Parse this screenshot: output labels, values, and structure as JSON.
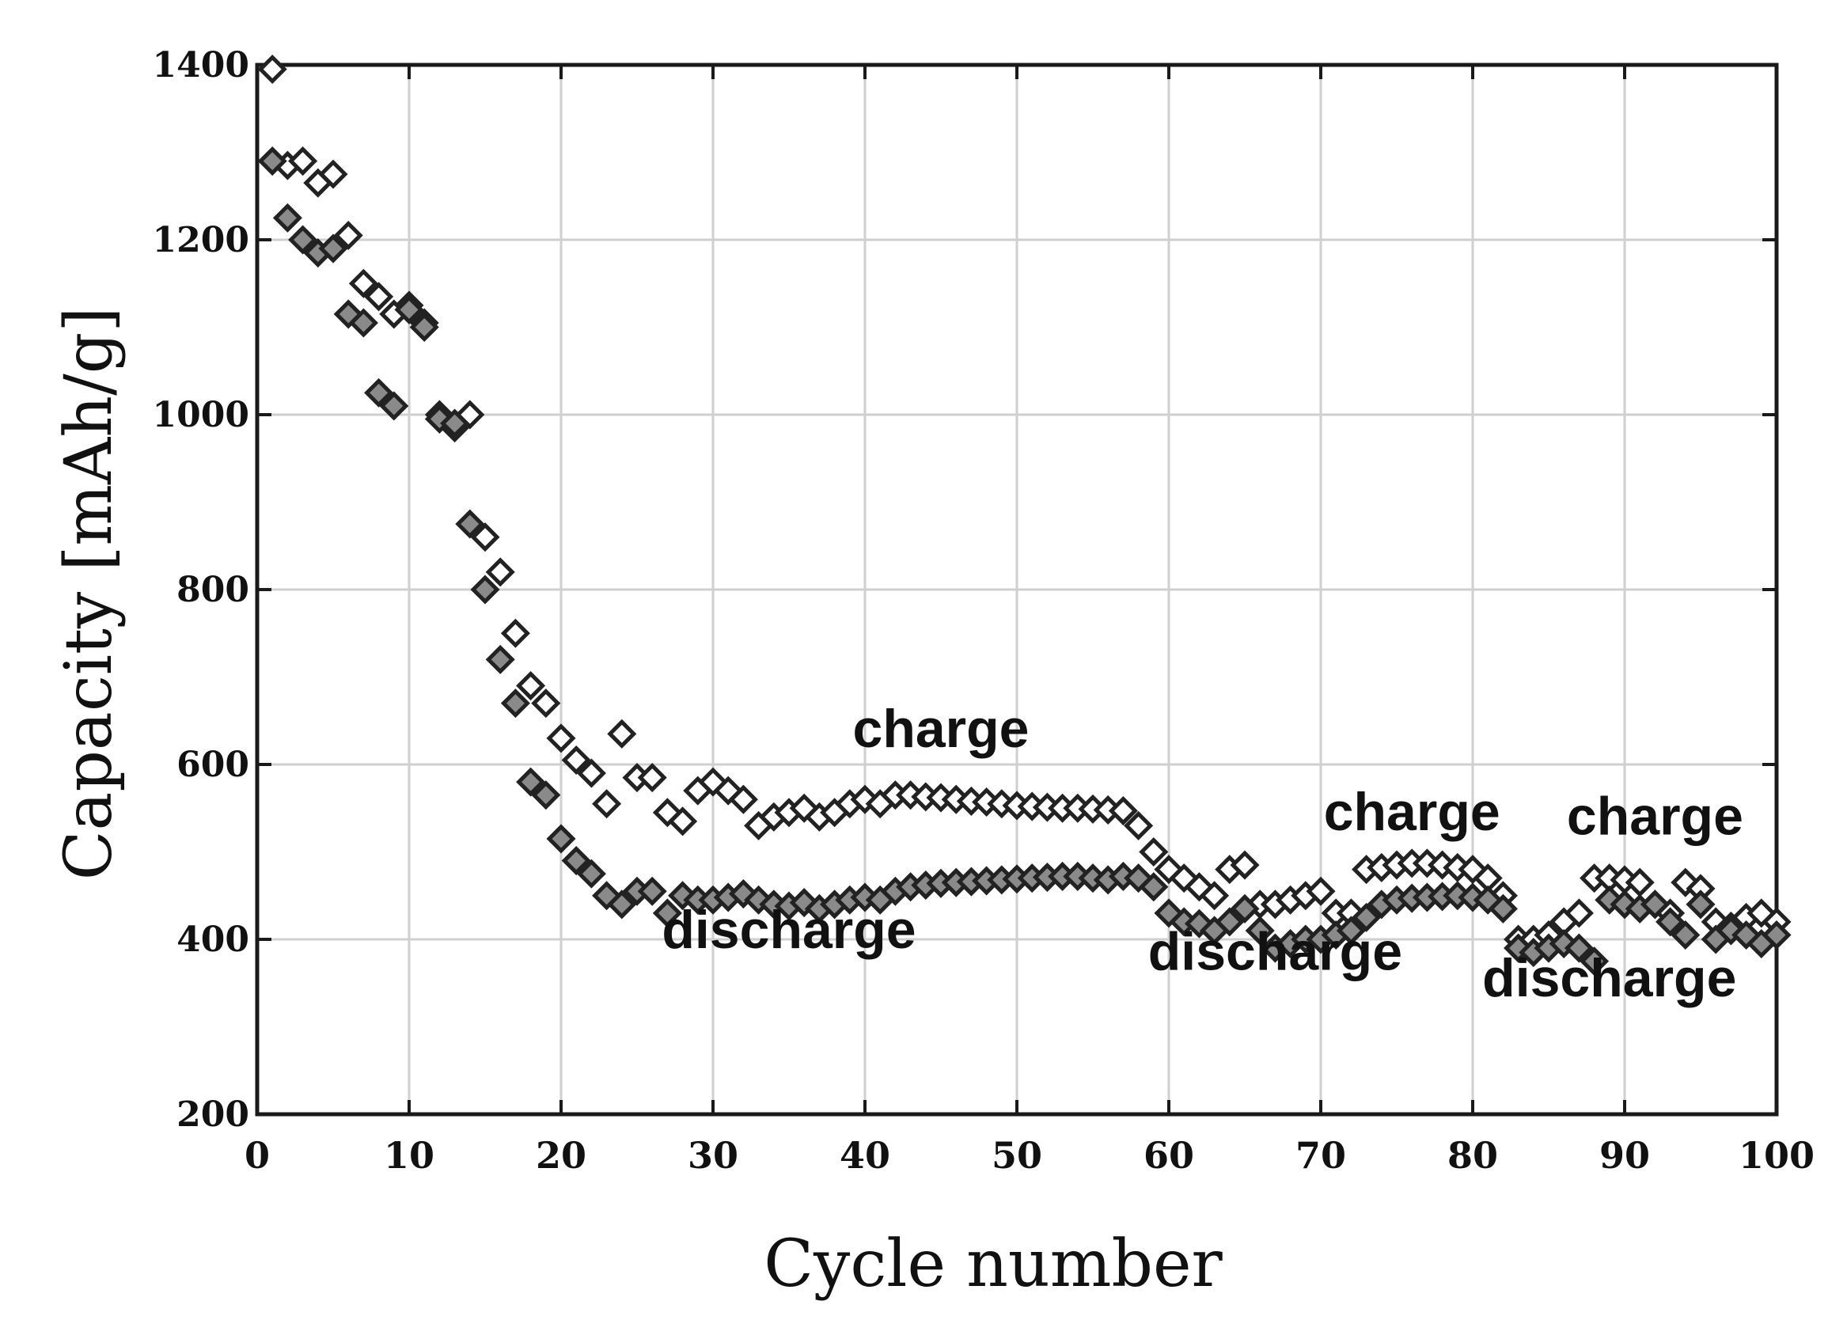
{
  "chart_data": {
    "type": "scatter",
    "xlabel": "Cycle number",
    "ylabel": "Capacity [mAh/g]",
    "xlim": [
      0,
      100
    ],
    "ylim": [
      200,
      1400
    ],
    "x_ticks": [
      0,
      10,
      20,
      30,
      40,
      50,
      60,
      70,
      80,
      90,
      100
    ],
    "y_ticks": [
      200,
      400,
      600,
      800,
      1000,
      1200,
      1400
    ],
    "grid": true,
    "marker": "diamond",
    "annotations": [
      {
        "text": "charge",
        "x": 45,
        "y": 620
      },
      {
        "text": "discharge",
        "x": 35,
        "y": 390
      },
      {
        "text": "charge",
        "x": 76,
        "y": 525
      },
      {
        "text": "discharge",
        "x": 67,
        "y": 365
      },
      {
        "text": "charge",
        "x": 92,
        "y": 520
      },
      {
        "text": "discharge",
        "x": 89,
        "y": 335
      }
    ],
    "series": [
      {
        "values": [
          [
            1,
            1395
          ],
          [
            2,
            1285
          ],
          [
            3,
            1290
          ],
          [
            4,
            1265
          ],
          [
            5,
            1275
          ],
          [
            6,
            1205
          ],
          [
            7,
            1150
          ],
          [
            8,
            1135
          ],
          [
            9,
            1115
          ],
          [
            10,
            1125
          ],
          [
            11,
            1105
          ],
          [
            12,
            1000
          ],
          [
            13,
            985
          ],
          [
            14,
            1000
          ],
          [
            15,
            860
          ],
          [
            16,
            820
          ],
          [
            17,
            750
          ],
          [
            18,
            690
          ],
          [
            19,
            670
          ],
          [
            20,
            630
          ],
          [
            21,
            605
          ],
          [
            22,
            590
          ],
          [
            23,
            555
          ],
          [
            24,
            635
          ],
          [
            25,
            585
          ],
          [
            26,
            585
          ],
          [
            27,
            545
          ],
          [
            28,
            535
          ],
          [
            29,
            570
          ],
          [
            30,
            580
          ],
          [
            31,
            570
          ],
          [
            32,
            560
          ],
          [
            33,
            530
          ],
          [
            34,
            540
          ],
          [
            35,
            545
          ],
          [
            36,
            550
          ],
          [
            37,
            540
          ],
          [
            38,
            545
          ],
          [
            39,
            555
          ],
          [
            40,
            560
          ],
          [
            41,
            555
          ],
          [
            42,
            565
          ],
          [
            43,
            565
          ],
          [
            44,
            563
          ],
          [
            45,
            562
          ],
          [
            46,
            560
          ],
          [
            47,
            558
          ],
          [
            48,
            557
          ],
          [
            49,
            555
          ],
          [
            50,
            553
          ],
          [
            51,
            552
          ],
          [
            52,
            551
          ],
          [
            53,
            550
          ],
          [
            54,
            550
          ],
          [
            55,
            549
          ],
          [
            56,
            548
          ],
          [
            57,
            547
          ],
          [
            58,
            530
          ],
          [
            59,
            500
          ],
          [
            60,
            480
          ],
          [
            61,
            470
          ],
          [
            62,
            460
          ],
          [
            63,
            450
          ],
          [
            64,
            480
          ],
          [
            65,
            485
          ],
          [
            66,
            440
          ],
          [
            67,
            440
          ],
          [
            68,
            445
          ],
          [
            69,
            450
          ],
          [
            70,
            455
          ],
          [
            71,
            430
          ],
          [
            72,
            430
          ],
          [
            73,
            480
          ],
          [
            74,
            482
          ],
          [
            75,
            485
          ],
          [
            76,
            487
          ],
          [
            77,
            487
          ],
          [
            78,
            485
          ],
          [
            79,
            482
          ],
          [
            80,
            480
          ],
          [
            81,
            470
          ],
          [
            82,
            450
          ],
          [
            83,
            400
          ],
          [
            84,
            400
          ],
          [
            85,
            405
          ],
          [
            86,
            420
          ],
          [
            87,
            430
          ],
          [
            88,
            470
          ],
          [
            89,
            470
          ],
          [
            90,
            468
          ],
          [
            91,
            465
          ],
          [
            92,
            440
          ],
          [
            93,
            430
          ],
          [
            94,
            465
          ],
          [
            95,
            458
          ],
          [
            96,
            420
          ],
          [
            97,
            415
          ],
          [
            98,
            425
          ],
          [
            99,
            430
          ],
          [
            100,
            420
          ]
        ]
      },
      {
        "values": [
          [
            1,
            1290
          ],
          [
            2,
            1225
          ],
          [
            3,
            1200
          ],
          [
            4,
            1185
          ],
          [
            5,
            1190
          ],
          [
            6,
            1115
          ],
          [
            7,
            1105
          ],
          [
            8,
            1025
          ],
          [
            9,
            1010
          ],
          [
            10,
            1120
          ],
          [
            11,
            1100
          ],
          [
            12,
            995
          ],
          [
            13,
            990
          ],
          [
            14,
            875
          ],
          [
            15,
            800
          ],
          [
            16,
            720
          ],
          [
            17,
            670
          ],
          [
            18,
            580
          ],
          [
            19,
            565
          ],
          [
            20,
            515
          ],
          [
            21,
            490
          ],
          [
            22,
            475
          ],
          [
            23,
            450
          ],
          [
            24,
            440
          ],
          [
            25,
            455
          ],
          [
            26,
            455
          ],
          [
            27,
            430
          ],
          [
            28,
            450
          ],
          [
            29,
            445
          ],
          [
            30,
            445
          ],
          [
            31,
            448
          ],
          [
            32,
            452
          ],
          [
            33,
            445
          ],
          [
            34,
            440
          ],
          [
            35,
            438
          ],
          [
            36,
            442
          ],
          [
            37,
            435
          ],
          [
            38,
            440
          ],
          [
            39,
            445
          ],
          [
            40,
            448
          ],
          [
            41,
            445
          ],
          [
            42,
            455
          ],
          [
            43,
            460
          ],
          [
            44,
            462
          ],
          [
            45,
            464
          ],
          [
            46,
            465
          ],
          [
            47,
            466
          ],
          [
            48,
            467
          ],
          [
            49,
            468
          ],
          [
            50,
            469
          ],
          [
            51,
            470
          ],
          [
            52,
            471
          ],
          [
            53,
            472
          ],
          [
            54,
            472
          ],
          [
            55,
            470
          ],
          [
            56,
            468
          ],
          [
            57,
            472
          ],
          [
            58,
            470
          ],
          [
            59,
            460
          ],
          [
            60,
            430
          ],
          [
            61,
            420
          ],
          [
            62,
            418
          ],
          [
            63,
            410
          ],
          [
            64,
            420
          ],
          [
            65,
            435
          ],
          [
            66,
            410
          ],
          [
            67,
            390
          ],
          [
            68,
            395
          ],
          [
            69,
            400
          ],
          [
            70,
            400
          ],
          [
            71,
            405
          ],
          [
            72,
            410
          ],
          [
            73,
            425
          ],
          [
            74,
            440
          ],
          [
            75,
            445
          ],
          [
            76,
            447
          ],
          [
            77,
            448
          ],
          [
            78,
            449
          ],
          [
            79,
            450
          ],
          [
            80,
            448
          ],
          [
            81,
            445
          ],
          [
            82,
            435
          ],
          [
            83,
            390
          ],
          [
            84,
            385
          ],
          [
            85,
            390
          ],
          [
            86,
            395
          ],
          [
            87,
            390
          ],
          [
            88,
            375
          ],
          [
            89,
            445
          ],
          [
            90,
            440
          ],
          [
            91,
            435
          ],
          [
            92,
            440
          ],
          [
            93,
            420
          ],
          [
            94,
            405
          ],
          [
            95,
            440
          ],
          [
            96,
            400
          ],
          [
            97,
            410
          ],
          [
            98,
            405
          ],
          [
            99,
            395
          ],
          [
            100,
            405
          ]
        ]
      }
    ]
  }
}
